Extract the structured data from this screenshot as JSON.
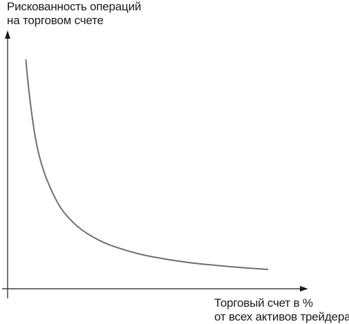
{
  "chart_data": {
    "type": "line",
    "ylabel_lines": [
      "Рискованность операций",
      "на торговом счете"
    ],
    "xlabel_lines": [
      "Торговый счет в %",
      "от всех активов трейдера"
    ],
    "grid": false,
    "series": [
      {
        "x": [
          0.07,
          0.08,
          0.1,
          0.12,
          0.15,
          0.2,
          0.25,
          0.3,
          0.35,
          0.4,
          0.5,
          0.6,
          0.7,
          0.8,
          0.9,
          1.0
        ],
        "y": [
          1.0,
          0.88,
          0.7,
          0.58,
          0.47,
          0.35,
          0.28,
          0.233,
          0.2,
          0.175,
          0.14,
          0.117,
          0.1,
          0.088,
          0.078,
          0.07
        ]
      }
    ],
    "colors": {
      "curve": "#6e6e6e",
      "axes": "#1a1a1a"
    }
  }
}
